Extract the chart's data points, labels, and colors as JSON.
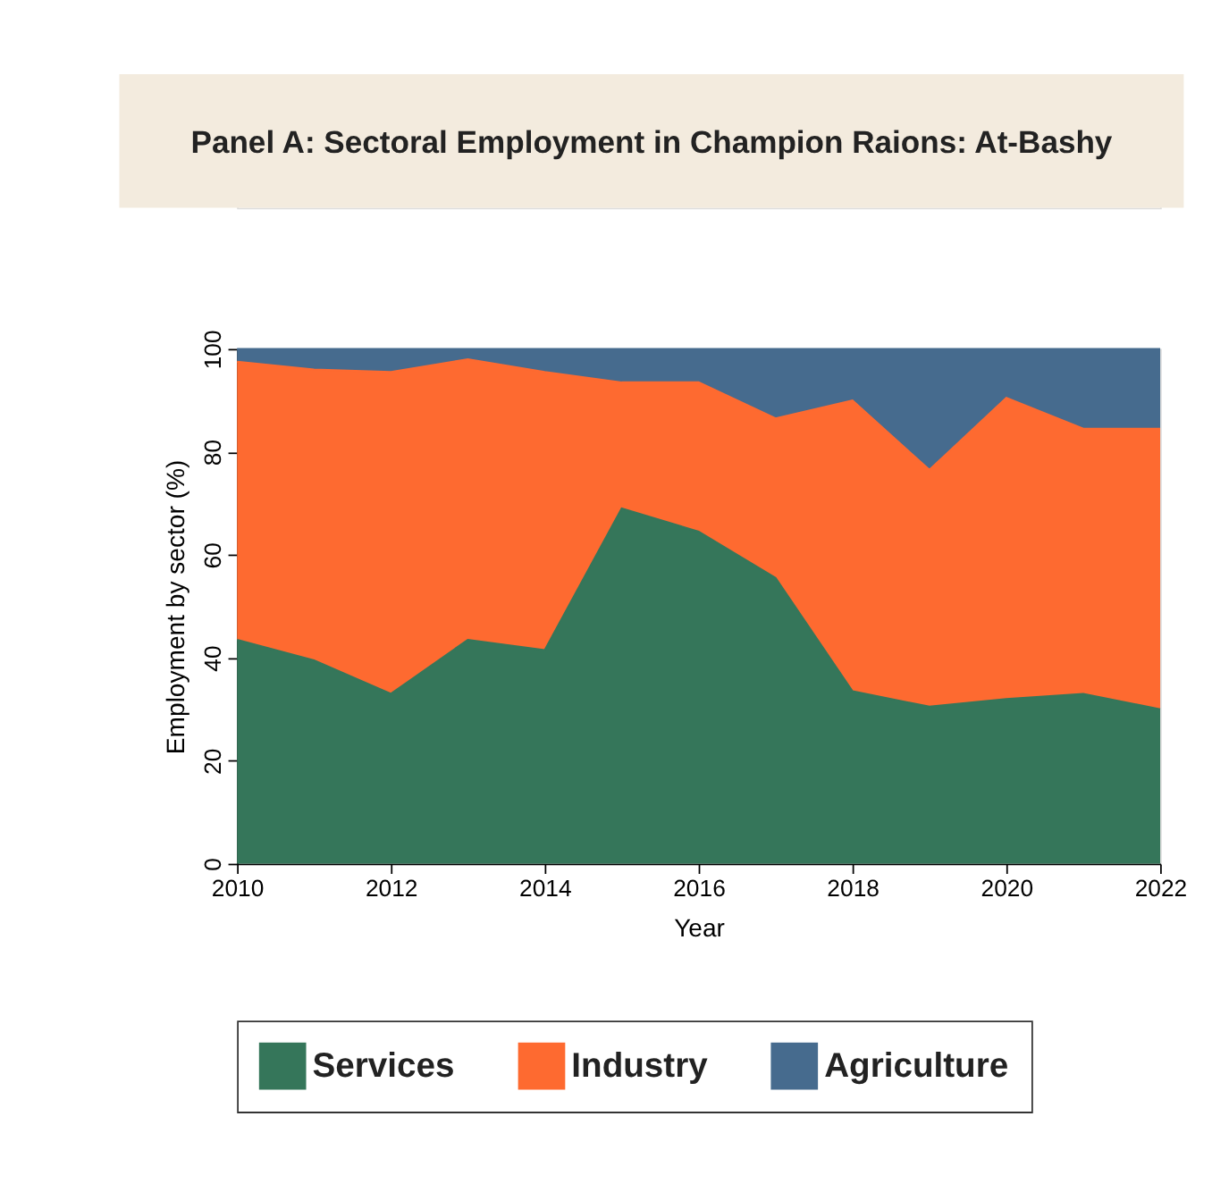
{
  "chart_data": {
    "type": "area",
    "title": "Panel A: Sectoral Employment in Champion Raions: At-Bashy",
    "xlabel": "Year",
    "ylabel": "Employment by sector (%)",
    "x": [
      2010,
      2011,
      2012,
      2013,
      2014,
      2015,
      2016,
      2017,
      2018,
      2019,
      2020,
      2021,
      2022
    ],
    "stacked": true,
    "series": [
      {
        "name": "Services",
        "color": "#35765a",
        "values": [
          43.5,
          39.5,
          33,
          43.5,
          41.5,
          69,
          64.5,
          55.5,
          33.5,
          30.5,
          32,
          33,
          30
        ]
      },
      {
        "name": "Industry",
        "color": "#fe6a30",
        "values": [
          54,
          56.5,
          62.5,
          54.5,
          54,
          24.5,
          29,
          31,
          56.5,
          46,
          58.5,
          51.5,
          54.5
        ]
      },
      {
        "name": "Agriculture",
        "color": "#466b8e",
        "values": [
          2.5,
          4,
          4.5,
          2,
          4.5,
          6.5,
          6.5,
          13.5,
          10,
          23.5,
          9.5,
          15.5,
          15.5
        ]
      }
    ],
    "xlim": [
      2010,
      2022
    ],
    "xticks": [
      2010,
      2012,
      2014,
      2016,
      2018,
      2020,
      2022
    ],
    "ylim": [
      0,
      100
    ],
    "yticks": [
      0,
      20,
      40,
      60,
      80,
      100
    ],
    "grid": false,
    "legend": "bottom"
  }
}
